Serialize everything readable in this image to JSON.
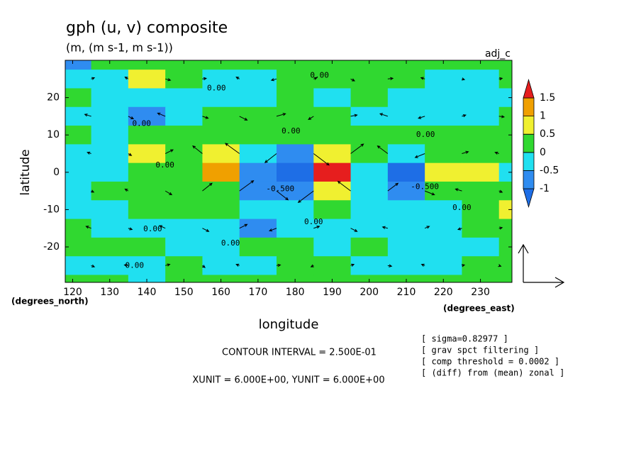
{
  "chart_data": {
    "type": "contour",
    "title": "gph (u, v) composite",
    "subtitle": "(m, (m s-1, m s-1))",
    "corner_label": "adj_c",
    "xlabel": "longitude",
    "ylabel": "latitude",
    "xunit_label": "(degrees_east)",
    "yunit_label": "(degrees_north)",
    "contour_interval": "CONTOUR INTERVAL = 2.500E-01",
    "vector_units": "XUNIT = 6.000E+00, YUNIT = 6.000E+00",
    "notes": [
      "[ sigma=0.82977 ]",
      "[ grav spct filtering ]",
      "[ comp threshold = 0.0002 ]",
      "[ (diff) from (mean) zonal ]"
    ],
    "xlim": [
      118,
      238.5
    ],
    "ylim": [
      -29.5,
      30
    ],
    "xticks": [
      120,
      130,
      140,
      150,
      160,
      170,
      180,
      190,
      200,
      210,
      220,
      230
    ],
    "yticks": [
      -20,
      -10,
      0,
      10,
      20
    ],
    "levels": [
      -1,
      -0.5,
      0,
      0.5,
      1,
      1.5
    ],
    "colors": [
      "#1e6ee6",
      "#2f8cf0",
      "#20e0f0",
      "#30d830",
      "#f0f030",
      "#f0a000",
      "#e61e1e"
    ],
    "lons": [
      120,
      130,
      140,
      150,
      160,
      170,
      180,
      190,
      200,
      210,
      220,
      230,
      240
    ],
    "lats": [
      30,
      25,
      20,
      15,
      10,
      5,
      0,
      -5,
      -10,
      -15,
      -20,
      -25,
      -30
    ],
    "values": [
      [
        -0.6,
        0.1,
        0.2,
        0.3,
        0.1,
        0.1,
        0.1,
        0.2,
        0.2,
        0.1,
        0.1,
        0.2,
        0.1
      ],
      [
        -0.2,
        -0.1,
        0.5,
        0.2,
        -0.1,
        -0.1,
        0.1,
        0.2,
        0.1,
        0.1,
        -0.2,
        -0.2,
        0.1
      ],
      [
        0.1,
        -0.2,
        -0.4,
        -0.2,
        -0.2,
        -0.2,
        0.1,
        -0.1,
        0.1,
        -0.2,
        -0.2,
        -0.1,
        -0.1
      ],
      [
        -0.2,
        -0.2,
        -0.6,
        -0.2,
        0.1,
        0.2,
        0.2,
        0.1,
        -0.1,
        -0.1,
        -0.2,
        -0.1,
        0.1
      ],
      [
        0.2,
        -0.1,
        0.1,
        0.1,
        0.2,
        0.1,
        0.2,
        0.2,
        0.2,
        0.1,
        0.1,
        0.2,
        0.2
      ],
      [
        -0.2,
        -0.1,
        0.6,
        0.2,
        0.5,
        -0.5,
        -0.6,
        0.6,
        0.1,
        -0.5,
        0.2,
        0.1,
        0.1
      ],
      [
        -0.2,
        -0.1,
        0.1,
        0.3,
        1.1,
        -0.9,
        -1.3,
        1.6,
        -0.1,
        -1.2,
        0.6,
        0.5,
        -0.2
      ],
      [
        -0.2,
        0.1,
        0.2,
        0.2,
        0.4,
        -0.6,
        -0.7,
        0.6,
        -0.1,
        -0.7,
        0.1,
        0.2,
        0.3
      ],
      [
        -0.1,
        -0.3,
        0.1,
        0.1,
        0.1,
        -0.3,
        -0.3,
        0.1,
        -0.2,
        -0.2,
        -0.1,
        0.2,
        0.6
      ],
      [
        0.1,
        -0.2,
        -0.2,
        -0.1,
        -0.2,
        -0.6,
        -0.2,
        -0.1,
        -0.2,
        -0.1,
        -0.1,
        0.1,
        0.2
      ],
      [
        0.2,
        0.1,
        0.1,
        -0.2,
        -0.1,
        0.1,
        0.2,
        -0.2,
        0.1,
        -0.1,
        -0.2,
        -0.2,
        0.1
      ],
      [
        -0.2,
        -0.2,
        -0.1,
        0.1,
        -0.2,
        -0.1,
        0.1,
        0.2,
        -0.1,
        -0.2,
        -0.1,
        0.1,
        0.1
      ],
      [
        0.1,
        0.1,
        -0.1,
        0.1,
        0.2,
        0.1,
        0.2,
        0.1,
        0.1,
        0.1,
        0.2,
        0.2,
        0.1
      ]
    ],
    "vectors": {
      "color": "#000000",
      "lons": [
        125,
        135,
        145,
        155,
        165,
        175,
        185,
        195,
        205,
        215,
        225,
        235
      ],
      "lats": [
        25,
        15,
        5,
        -5,
        -15,
        -25
      ],
      "u": [
        [
          0.5,
          -0.5,
          0.8,
          0.6,
          -0.5,
          -0.8,
          0.5,
          0.6,
          0.8,
          -0.6,
          0.4,
          0.5
        ],
        [
          -1,
          0.8,
          -1.2,
          0.9,
          1.2,
          1.4,
          -0.8,
          1,
          -1.2,
          -1,
          0.6,
          0.8
        ],
        [
          -0.6,
          0.5,
          1.2,
          -1.5,
          -2.2,
          -1.8,
          2.4,
          2,
          -1.6,
          -1.5,
          1,
          -0.6
        ],
        [
          0.4,
          -0.5,
          1,
          1.5,
          2.2,
          1.8,
          -2.4,
          -2,
          1.6,
          1.5,
          -1,
          0.5
        ],
        [
          -0.8,
          0.6,
          -0.9,
          1,
          1.2,
          -1.1,
          0.9,
          1,
          -0.8,
          0.7,
          -0.6,
          0.5
        ],
        [
          0.5,
          -0.6,
          0.7,
          0.4,
          -0.5,
          0.6,
          -0.4,
          0.5,
          0.6,
          -0.5,
          0.4,
          0.3
        ]
      ],
      "v": [
        [
          0.2,
          0.3,
          -0.2,
          0.1,
          0.3,
          -0.2,
          0.2,
          -0.3,
          0.1,
          0.2,
          -0.1,
          0.1
        ],
        [
          0.3,
          -0.4,
          0.5,
          -0.3,
          -0.6,
          0.4,
          -0.5,
          0.2,
          0.4,
          -0.3,
          0.2,
          -0.1
        ],
        [
          0.2,
          -0.3,
          0.6,
          1.2,
          1.6,
          -1.4,
          -1.8,
          1.5,
          1.2,
          -0.6,
          0.3,
          0.2
        ],
        [
          -0.2,
          0.3,
          -0.6,
          1.2,
          1.6,
          -1.4,
          -1.8,
          1.5,
          1.2,
          -0.6,
          0.3,
          -0.2
        ],
        [
          0.3,
          -0.2,
          0.4,
          -0.5,
          0.6,
          -0.4,
          0.3,
          -0.5,
          0.2,
          0.3,
          -0.2,
          0.1
        ],
        [
          -0.2,
          0.1,
          0.2,
          -0.3,
          0.2,
          0.1,
          -0.2,
          0.2,
          -0.1,
          0.2,
          0.1,
          -0.1
        ]
      ]
    },
    "contour_labels": [
      {
        "text": "0.00",
        "lon": 186.6,
        "lat": 25.9
      },
      {
        "text": "0.00",
        "lon": 158.8,
        "lat": 22.5
      },
      {
        "text": "0.00",
        "lon": 138.6,
        "lat": 13
      },
      {
        "text": "0.00",
        "lon": 178.9,
        "lat": 11
      },
      {
        "text": "0.00",
        "lon": 215.2,
        "lat": 10
      },
      {
        "text": "0.00",
        "lon": 144.9,
        "lat": 1.9
      },
      {
        "text": "-0.500",
        "lon": 176,
        "lat": -4.5
      },
      {
        "text": "-0.500",
        "lon": 215,
        "lat": -3.9
      },
      {
        "text": "0.00",
        "lon": 225,
        "lat": -9.5
      },
      {
        "text": "0.00",
        "lon": 185,
        "lat": -13.3
      },
      {
        "text": "0.00",
        "lon": 141.6,
        "lat": -15.2
      },
      {
        "text": "0.00",
        "lon": 162.6,
        "lat": -19
      },
      {
        "text": "0.00",
        "lon": 136.7,
        "lat": -25
      }
    ]
  }
}
